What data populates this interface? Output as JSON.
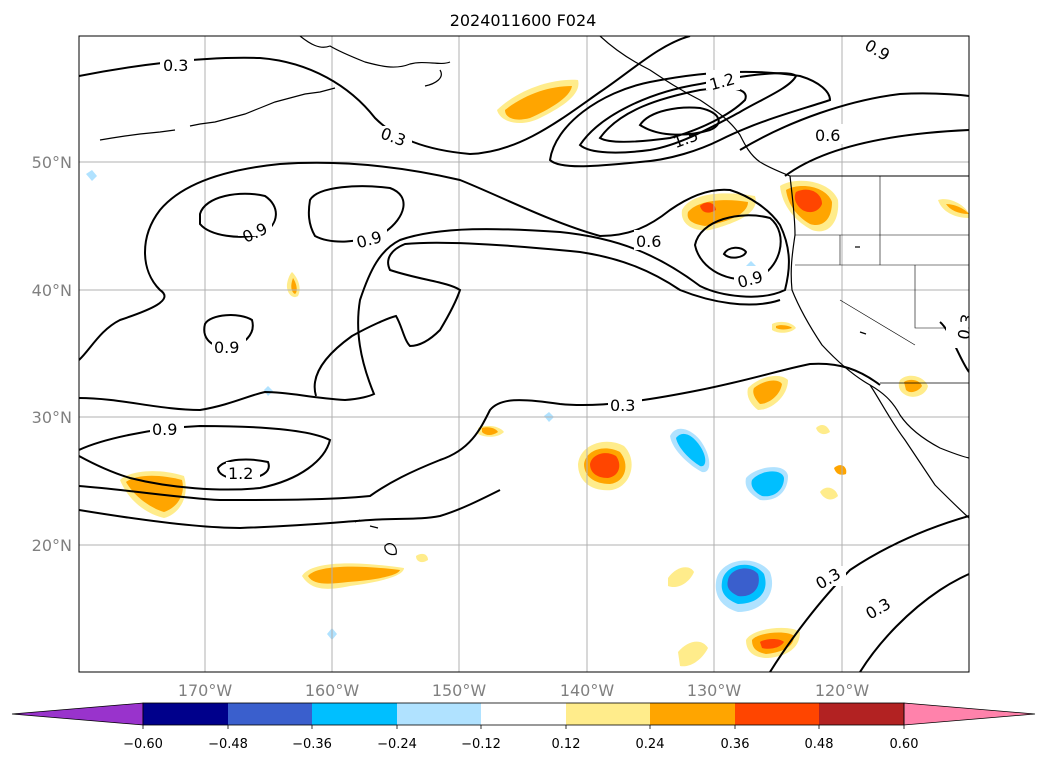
{
  "title": "2024011600 F024",
  "map": {
    "lat_labels": [
      "50°N",
      "40°N",
      "30°N",
      "20°N"
    ],
    "lon_labels": [
      "170°W",
      "160°W",
      "150°W",
      "140°W",
      "130°W",
      "120°W"
    ],
    "contour_labels": [
      "0.3",
      "0.3",
      "1.2",
      "1.5",
      "0.6",
      "0.9",
      "0.9",
      "0.9",
      "0.6",
      "0.9",
      "0.9",
      "0.3",
      "0.9",
      "1.2",
      "0.3",
      "0.3",
      "0.3"
    ],
    "colors": {
      "coast": "#000000",
      "grid": "#b0b0b0",
      "contour": "#000000"
    }
  },
  "colorbar": {
    "colors": [
      "#9933cc",
      "#00008b",
      "#3a5fcd",
      "#00bfff",
      "#b0e2ff",
      "#ffffff",
      "#ffec8b",
      "#ffa500",
      "#ff4500",
      "#b22222",
      "#ff82ab"
    ],
    "tick_labels": [
      "−0.60",
      "−0.48",
      "−0.36",
      "−0.24",
      "−0.12",
      "0.12",
      "0.24",
      "0.36",
      "0.48",
      "0.60"
    ]
  }
}
